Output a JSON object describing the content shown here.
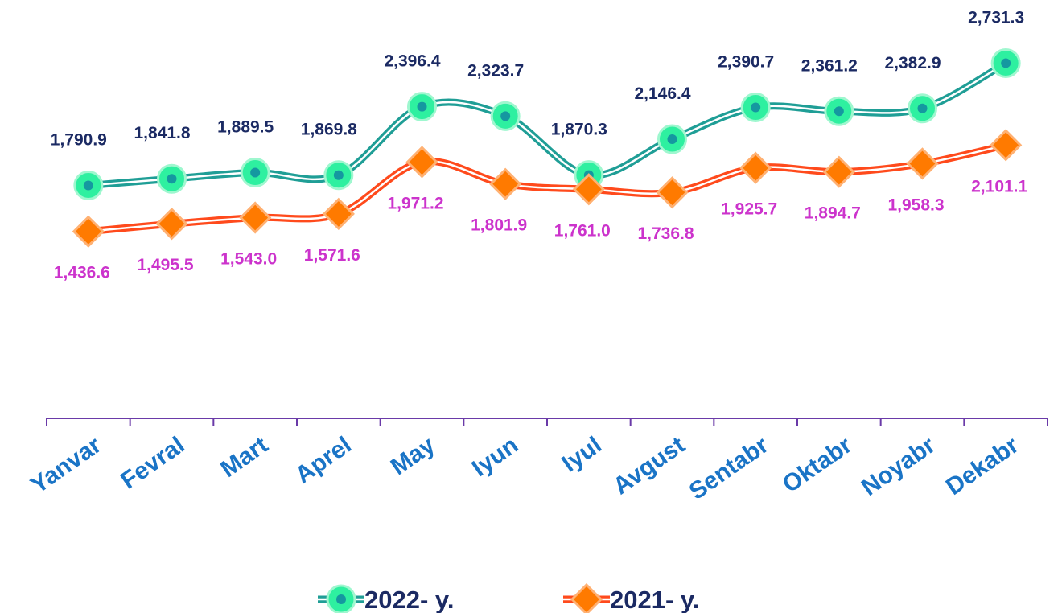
{
  "chart_data": {
    "type": "line",
    "categories": [
      "Yanvar",
      "Fevral",
      "Mart",
      "Aprel",
      "May",
      "Iyun",
      "Iyul",
      "Avgust",
      "Sentabr",
      "Oktabr",
      "Noyabr",
      "Dekabr"
    ],
    "series": [
      {
        "name": "2022- y.",
        "color": "#1f9e96",
        "values": [
          1790.9,
          1841.8,
          1889.5,
          1869.8,
          2396.4,
          2323.7,
          1870.3,
          2146.4,
          2390.7,
          2361.2,
          2382.9,
          2731.3
        ],
        "value_labels": [
          "1,790.9",
          "1,841.8",
          "1,889.5",
          "1,869.8",
          "2,396.4",
          "2,323.7",
          "1,870.3",
          "2,146.4",
          "2,390.7",
          "2,361.2",
          "2,382.9",
          "2,731.3"
        ]
      },
      {
        "name": "2021- y.",
        "color": "#ff4a1c",
        "values": [
          1436.6,
          1495.5,
          1543.0,
          1571.6,
          1971.2,
          1801.9,
          1761.0,
          1736.8,
          1925.7,
          1894.7,
          1958.3,
          2101.1
        ],
        "value_labels": [
          "1,436.6",
          "1,495.5",
          "1,543.0",
          "1,571.6",
          "1,971.2",
          "1,801.9",
          "1,761.0",
          "1,736.8",
          "1,925.7",
          "1,894.7",
          "1,958.3",
          "2,101.1"
        ]
      }
    ],
    "ylim": [
      0,
      3000
    ]
  }
}
